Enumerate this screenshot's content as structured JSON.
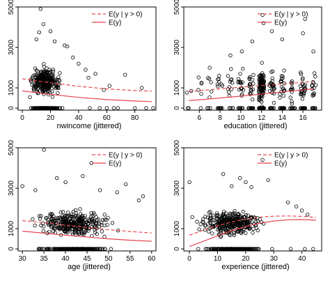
{
  "chart_data": [
    {
      "type": "scatter",
      "id": "panel-nwincome",
      "xlabel": "nwincome (jittered)",
      "ylabel": "",
      "xlim": [
        -3,
        95
      ],
      "ylim": [
        -100,
        5000
      ],
      "xticks": [
        0,
        20,
        40,
        60,
        80
      ],
      "yticks": [
        0,
        1000,
        3000,
        5000
      ],
      "legend": {
        "position": "top-right",
        "entries": [
          "E(y | y > 0)",
          "E(y)"
        ]
      },
      "cluster": {
        "xmin": 2,
        "xmax": 40,
        "center": 16,
        "pos_frac": 0.58,
        "ymean": 1300,
        "yspread": 800,
        "n": 430
      },
      "outliers": [
        [
          13,
          4900
        ],
        [
          15,
          4150
        ],
        [
          10,
          3400
        ],
        [
          12,
          3750
        ],
        [
          20,
          3800
        ],
        [
          23,
          3300
        ],
        [
          30,
          3100
        ],
        [
          32,
          3050
        ],
        [
          36,
          2500
        ],
        [
          40,
          2200
        ],
        [
          45,
          1900
        ],
        [
          47,
          1500
        ],
        [
          52,
          1700
        ],
        [
          58,
          900
        ],
        [
          62,
          1100
        ],
        [
          73,
          1650
        ],
        [
          85,
          1000
        ],
        [
          55,
          0
        ],
        [
          60,
          0
        ],
        [
          65,
          0
        ],
        [
          68,
          0
        ],
        [
          80,
          0
        ],
        [
          88,
          0
        ],
        [
          93,
          0
        ],
        [
          48,
          0
        ]
      ],
      "series": [
        {
          "name": "E(y | y > 0)",
          "style": "dashed",
          "color": "#e8464e",
          "x": [
            0,
            20,
            40,
            60,
            80,
            92
          ],
          "y": [
            1450,
            1250,
            1080,
            950,
            870,
            840
          ]
        },
        {
          "name": "E(y)",
          "style": "solid",
          "color": "#e8464e",
          "x": [
            0,
            20,
            40,
            60,
            80,
            92
          ],
          "y": [
            850,
            680,
            530,
            420,
            350,
            320
          ]
        }
      ]
    },
    {
      "type": "scatter",
      "id": "panel-education",
      "xlabel": "education (jittered)",
      "ylabel": "",
      "xlim": [
        4.5,
        17.8
      ],
      "ylim": [
        -100,
        5000
      ],
      "xticks": [
        6,
        8,
        10,
        12,
        14,
        16
      ],
      "yticks": [
        0,
        1000,
        3000,
        5000
      ],
      "legend": {
        "position": "top-right",
        "entries": [
          "E(y | y > 0)",
          "E(y)"
        ]
      },
      "columns": [
        {
          "x": 5,
          "n": 4
        },
        {
          "x": 6,
          "n": 6
        },
        {
          "x": 7,
          "n": 8
        },
        {
          "x": 8,
          "n": 18
        },
        {
          "x": 9,
          "n": 16
        },
        {
          "x": 10,
          "n": 28
        },
        {
          "x": 11,
          "n": 30
        },
        {
          "x": 12,
          "n": 170
        },
        {
          "x": 13,
          "n": 40
        },
        {
          "x": 14,
          "n": 40
        },
        {
          "x": 15,
          "n": 20
        },
        {
          "x": 16,
          "n": 40
        },
        {
          "x": 17,
          "n": 22
        }
      ],
      "outliers": [
        [
          12,
          4950
        ],
        [
          12.1,
          4600
        ],
        [
          12.2,
          4200
        ],
        [
          13,
          3800
        ],
        [
          11.1,
          3300
        ],
        [
          14,
          3400
        ],
        [
          10.1,
          2800
        ],
        [
          16,
          3700
        ],
        [
          16.2,
          4400
        ],
        [
          17,
          2800
        ],
        [
          9,
          2600
        ],
        [
          7,
          2000
        ]
      ],
      "series": [
        {
          "name": "E(y | y > 0)",
          "style": "dashed",
          "color": "#e8464e",
          "x": [
            5,
            8,
            11,
            14,
            17
          ],
          "y": [
            820,
            950,
            1080,
            1200,
            1320
          ]
        },
        {
          "name": "E(y)",
          "style": "solid",
          "color": "#e8464e",
          "x": [
            5,
            8,
            11,
            14,
            17
          ],
          "y": [
            370,
            500,
            640,
            800,
            950
          ]
        }
      ]
    },
    {
      "type": "scatter",
      "id": "panel-age",
      "xlabel": "age (jittered)",
      "ylabel": "",
      "xlim": [
        29,
        61
      ],
      "ylim": [
        -100,
        5000
      ],
      "xticks": [
        30,
        35,
        40,
        45,
        50,
        55,
        60
      ],
      "yticks": [
        0,
        1000,
        3000,
        5000
      ],
      "legend": {
        "position": "top-right",
        "entries": [
          "E(y | y > 0)",
          "E(y)"
        ]
      },
      "cluster": {
        "xmin": 30,
        "xmax": 60,
        "center": 42,
        "pos_frac": 0.58,
        "ymean": 1250,
        "yspread": 750,
        "n": 520
      },
      "outliers": [
        [
          35,
          4900
        ],
        [
          46,
          4250
        ],
        [
          38,
          3500
        ],
        [
          44,
          3600
        ],
        [
          40,
          3300
        ],
        [
          30,
          3100
        ],
        [
          54,
          3200
        ],
        [
          48,
          2900
        ],
        [
          52,
          2800
        ],
        [
          58,
          2600
        ],
        [
          33,
          2900
        ],
        [
          57,
          2400
        ]
      ],
      "series": [
        {
          "name": "E(y | y > 0)",
          "style": "dashed",
          "color": "#e8464e",
          "x": [
            30,
            35,
            40,
            45,
            50,
            55,
            60
          ],
          "y": [
            1400,
            1300,
            1180,
            1060,
            950,
            860,
            790
          ]
        },
        {
          "name": "E(y)",
          "style": "solid",
          "color": "#e8464e",
          "x": [
            30,
            35,
            40,
            45,
            50,
            55,
            60
          ],
          "y": [
            880,
            780,
            680,
            590,
            500,
            430,
            380
          ]
        }
      ]
    },
    {
      "type": "scatter",
      "id": "panel-experience",
      "xlabel": "experience (jittered)",
      "ylabel": "",
      "xlim": [
        -2,
        47
      ],
      "ylim": [
        -100,
        5000
      ],
      "xticks": [
        0,
        10,
        20,
        30,
        40
      ],
      "yticks": [
        0,
        1000,
        3000,
        5000
      ],
      "legend": {
        "position": "top-right",
        "entries": [
          "E(y | y > 0)",
          "E(y)"
        ]
      },
      "cluster": {
        "xmin": 0,
        "xmax": 38,
        "center": 15,
        "pos_frac": 0.6,
        "ymean": 1300,
        "yspread": 750,
        "n": 480
      },
      "outliers": [
        [
          24,
          4950
        ],
        [
          26,
          4400
        ],
        [
          0,
          3300
        ],
        [
          12,
          3700
        ],
        [
          18,
          3500
        ],
        [
          20,
          3300
        ],
        [
          15,
          3100
        ],
        [
          22,
          3050
        ],
        [
          28,
          3400
        ],
        [
          35,
          2300
        ],
        [
          38,
          2100
        ],
        [
          40,
          1900
        ],
        [
          42,
          1700
        ],
        [
          44,
          0
        ],
        [
          41,
          0
        ],
        [
          36,
          0
        ]
      ],
      "series": [
        {
          "name": "E(y | y > 0)",
          "style": "dashed",
          "color": "#e8464e",
          "x": [
            0,
            5,
            10,
            15,
            20,
            25,
            30,
            35,
            40,
            45
          ],
          "y": [
            680,
            930,
            1150,
            1330,
            1470,
            1570,
            1620,
            1630,
            1610,
            1560
          ]
        },
        {
          "name": "E(y)",
          "style": "solid",
          "color": "#e8464e",
          "x": [
            0,
            5,
            10,
            15,
            20,
            25,
            30,
            35,
            40,
            45
          ],
          "y": [
            120,
            380,
            650,
            900,
            1110,
            1270,
            1380,
            1440,
            1450,
            1420
          ]
        }
      ]
    }
  ],
  "colors": {
    "points": "#000000",
    "curves": "#e8464e",
    "background": "#ffffff"
  }
}
